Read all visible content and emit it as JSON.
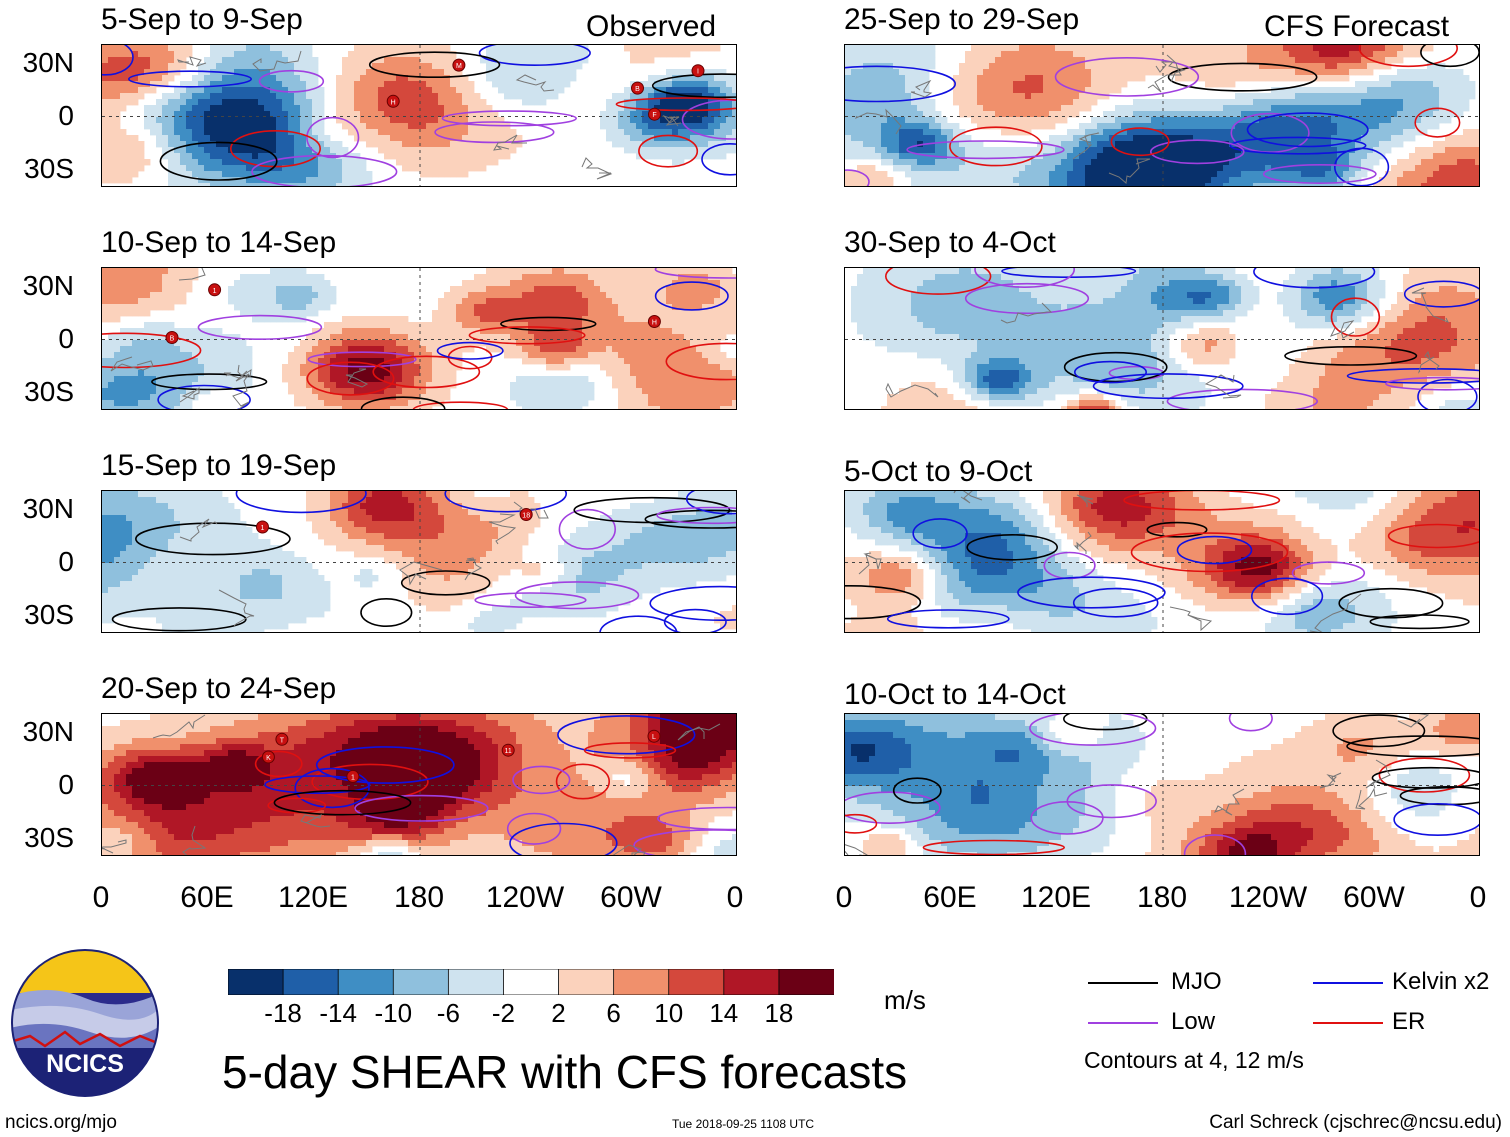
{
  "title": "5-day SHEAR with CFS forecasts",
  "panel_tags": {
    "observed": "Observed",
    "forecast": "CFS Forecast"
  },
  "units": "m/s",
  "footer": {
    "left": "ncics.org/mjo",
    "mid": "Tue 2018-09-25 1108 UTC",
    "right": "Carl Schreck (cjschrec@ncsu.edu)"
  },
  "logo_text": "NCICS",
  "legend": {
    "mjo": "MJO",
    "kelvin": "Kelvin x2",
    "low": "Low",
    "er": "ER",
    "colors": {
      "mjo": "#000000",
      "kelvin": "#1010e0",
      "low": "#a040e0",
      "er": "#e01010"
    },
    "note": "Contours at 4, 12 m/s"
  },
  "colorbar": {
    "ticks": [
      "-18",
      "-14",
      "-10",
      "-6",
      "-2",
      "2",
      "6",
      "10",
      "14",
      "18"
    ],
    "colors": [
      "#08306b",
      "#1f5fa8",
      "#3f8ec4",
      "#8fc0dd",
      "#cfe3ef",
      "#ffffff",
      "#fbd2bc",
      "#f0906c",
      "#d4483c",
      "#b01726",
      "#6b0015"
    ]
  },
  "chart_data": {
    "type": "heatmap",
    "variable": "5-day SHEAR",
    "lat_ticks": [
      "30N",
      "0",
      "30S"
    ],
    "lon_ticks": [
      "0",
      "60E",
      "120E",
      "180",
      "120W",
      "60W",
      "0"
    ],
    "panels": [
      {
        "label": "5-Sep to 9-Sep",
        "kind": "observed",
        "storms": [
          "B",
          "M",
          "F",
          "I",
          "H"
        ]
      },
      {
        "label": "10-Sep to 14-Sep",
        "kind": "observed",
        "storms": [
          "B",
          "1",
          "H"
        ]
      },
      {
        "label": "15-Sep to 19-Sep",
        "kind": "observed",
        "storms": [
          "1",
          "18"
        ]
      },
      {
        "label": "20-Sep to 24-Sep",
        "kind": "observed",
        "storms": [
          "1",
          "T",
          "L",
          "11",
          "K"
        ]
      },
      {
        "label": "25-Sep to 29-Sep",
        "kind": "forecast",
        "storms": []
      },
      {
        "label": "30-Sep to 4-Oct",
        "kind": "forecast",
        "storms": []
      },
      {
        "label": "5-Oct to 9-Oct",
        "kind": "forecast",
        "storms": []
      },
      {
        "label": "10-Oct to 14-Oct",
        "kind": "forecast",
        "storms": []
      }
    ]
  }
}
